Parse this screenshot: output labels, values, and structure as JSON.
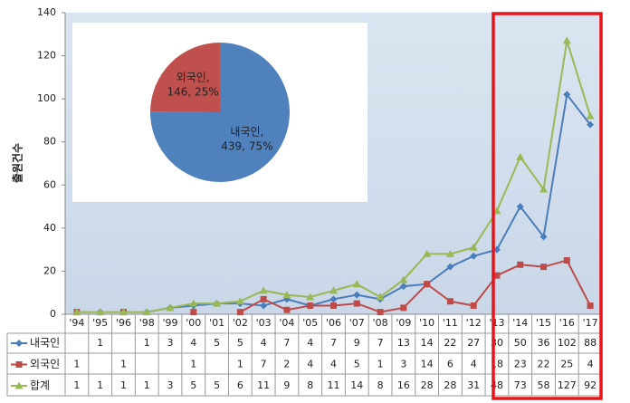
{
  "chart_data": [
    {
      "type": "line",
      "y_label": "출원건수",
      "categories": [
        "'94",
        "'95",
        "'96",
        "'98",
        "'99",
        "'00",
        "'01",
        "'02",
        "'03",
        "'04",
        "'05",
        "'06",
        "'07",
        "'08",
        "'09",
        "'10",
        "'11",
        "'12",
        "'13",
        "'14",
        "'15",
        "'16",
        "'17"
      ],
      "ylim": [
        0,
        140
      ],
      "yticks": [
        0,
        20,
        40,
        60,
        80,
        100,
        120,
        140
      ],
      "series": [
        {
          "name": "내국인",
          "color": "#4a7ebb",
          "marker": "diamond",
          "values": [
            null,
            1,
            null,
            1,
            3,
            4,
            5,
            5,
            4,
            7,
            4,
            7,
            9,
            7,
            13,
            14,
            22,
            27,
            30,
            50,
            36,
            102,
            88
          ]
        },
        {
          "name": "외국인",
          "color": "#be4b48",
          "marker": "square",
          "values": [
            1,
            null,
            1,
            null,
            null,
            1,
            null,
            1,
            7,
            2,
            4,
            4,
            5,
            1,
            3,
            14,
            6,
            4,
            18,
            23,
            22,
            25,
            4
          ]
        },
        {
          "name": "합계",
          "color": "#98b954",
          "marker": "triangle",
          "values": [
            1,
            1,
            1,
            1,
            3,
            5,
            5,
            6,
            11,
            9,
            8,
            11,
            14,
            8,
            16,
            28,
            28,
            31,
            48,
            73,
            58,
            127,
            92
          ]
        }
      ]
    },
    {
      "type": "pie",
      "categories": [
        "내국인,",
        "외국인,"
      ],
      "values": [
        439,
        146
      ],
      "value_labels": [
        "439, 75%",
        "146, 25%"
      ],
      "colors": [
        "#4f81bd",
        "#c0504d"
      ]
    }
  ]
}
